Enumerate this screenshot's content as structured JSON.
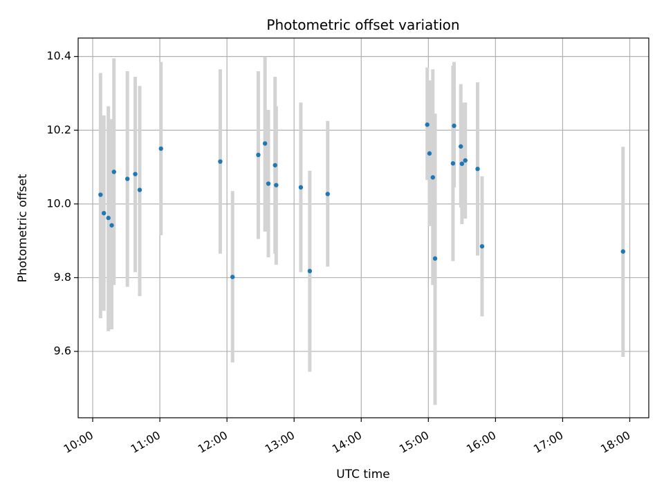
{
  "chart_data": {
    "type": "scatter",
    "title": "Photometric offset variation",
    "xlabel": "UTC time",
    "ylabel": "Photometric offset",
    "x_unit": "hours UTC",
    "xlim": [
      "09:47",
      "18:17"
    ],
    "ylim": [
      9.42,
      10.45
    ],
    "x_ticks": [
      "10:00",
      "11:00",
      "12:00",
      "13:00",
      "14:00",
      "15:00",
      "16:00",
      "17:00",
      "18:00"
    ],
    "y_ticks": [
      "9.6",
      "9.8",
      "10.0",
      "10.2",
      "10.4"
    ],
    "grid": true,
    "colors": {
      "points": "#1f77b4",
      "errorbars": "#d3d3d3",
      "grid": "#b0b0b0",
      "axes": "#000000"
    },
    "series": [
      {
        "points": [
          {
            "x": "10:07",
            "y": 10.025,
            "ylow": 9.69,
            "yhigh": 10.355
          },
          {
            "x": "10:10",
            "y": 9.975,
            "ylow": 9.71,
            "yhigh": 10.24
          },
          {
            "x": "10:14",
            "y": 9.962,
            "ylow": 9.655,
            "yhigh": 10.265
          },
          {
            "x": "10:17",
            "y": 9.942,
            "ylow": 9.66,
            "yhigh": 10.23
          },
          {
            "x": "10:19",
            "y": 10.087,
            "ylow": 9.78,
            "yhigh": 10.395
          },
          {
            "x": "10:31",
            "y": 10.068,
            "ylow": 9.775,
            "yhigh": 10.36
          },
          {
            "x": "10:38",
            "y": 10.081,
            "ylow": 9.815,
            "yhigh": 10.345
          },
          {
            "x": "10:42",
            "y": 10.038,
            "ylow": 9.75,
            "yhigh": 10.32
          },
          {
            "x": "11:01",
            "y": 10.15,
            "ylow": 9.915,
            "yhigh": 10.385
          },
          {
            "x": "11:54",
            "y": 10.115,
            "ylow": 9.865,
            "yhigh": 10.365
          },
          {
            "x": "12:05",
            "y": 9.802,
            "ylow": 9.57,
            "yhigh": 10.035
          },
          {
            "x": "12:28",
            "y": 10.133,
            "ylow": 9.905,
            "yhigh": 10.36
          },
          {
            "x": "12:34",
            "y": 10.164,
            "ylow": 9.925,
            "yhigh": 10.4
          },
          {
            "x": "12:37",
            "y": 10.055,
            "ylow": 9.855,
            "yhigh": 10.255
          },
          {
            "x": "12:43",
            "y": 10.105,
            "ylow": 9.865,
            "yhigh": 10.345
          },
          {
            "x": "12:44",
            "y": 10.051,
            "ylow": 9.835,
            "yhigh": 10.265
          },
          {
            "x": "13:06",
            "y": 10.045,
            "ylow": 9.815,
            "yhigh": 10.275
          },
          {
            "x": "13:14",
            "y": 9.818,
            "ylow": 9.545,
            "yhigh": 10.09
          },
          {
            "x": "13:30",
            "y": 10.027,
            "ylow": 9.83,
            "yhigh": 10.225
          },
          {
            "x": "14:59",
            "y": 10.215,
            "ylow": 10.065,
            "yhigh": 10.37
          },
          {
            "x": "15:01",
            "y": 10.137,
            "ylow": 9.94,
            "yhigh": 10.335
          },
          {
            "x": "15:04",
            "y": 10.072,
            "ylow": 9.78,
            "yhigh": 10.365
          },
          {
            "x": "15:06",
            "y": 9.852,
            "ylow": 9.455,
            "yhigh": 10.245
          },
          {
            "x": "15:22",
            "y": 10.11,
            "ylow": 9.845,
            "yhigh": 10.375
          },
          {
            "x": "15:23",
            "y": 10.212,
            "ylow": 10.045,
            "yhigh": 10.385
          },
          {
            "x": "15:29",
            "y": 10.156,
            "ylow": 9.99,
            "yhigh": 10.325
          },
          {
            "x": "15:30",
            "y": 10.109,
            "ylow": 9.945,
            "yhigh": 10.275
          },
          {
            "x": "15:33",
            "y": 10.118,
            "ylow": 9.96,
            "yhigh": 10.275
          },
          {
            "x": "15:44",
            "y": 10.095,
            "ylow": 9.86,
            "yhigh": 10.33
          },
          {
            "x": "15:48",
            "y": 9.885,
            "ylow": 9.695,
            "yhigh": 10.075
          },
          {
            "x": "17:54",
            "y": 9.871,
            "ylow": 9.585,
            "yhigh": 10.155
          }
        ]
      }
    ]
  }
}
